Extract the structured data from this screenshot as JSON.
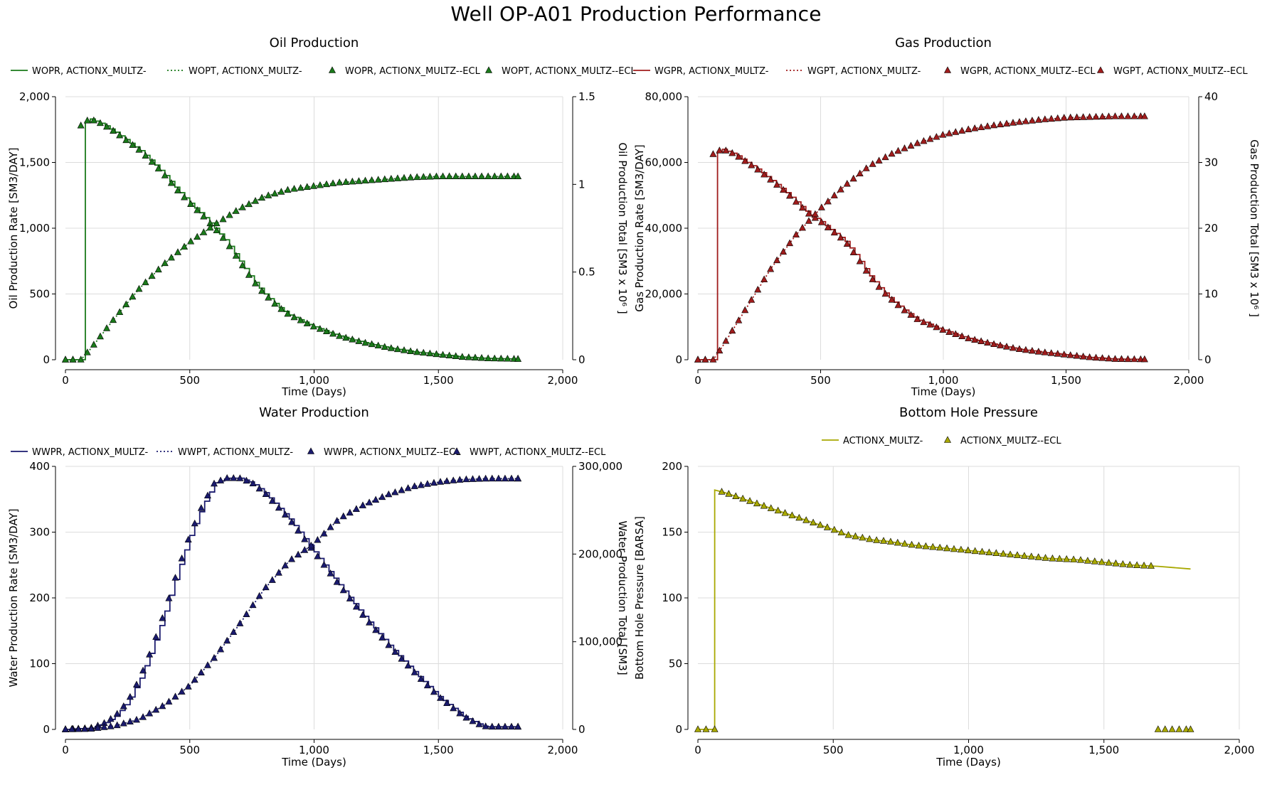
{
  "page": {
    "title": "Well OP-A01 Production Performance"
  },
  "chart_data": [
    {
      "id": "oil",
      "type": "line",
      "title": "Oil Production",
      "xlabel": "Time (Days)",
      "ylabel_left": "Oil Production Rate [SM3/DAY]",
      "ylabel_right": "Oil Production Total [SM3 x 10⁶ ]",
      "xlim": [
        0,
        2000
      ],
      "xticks": [
        0,
        500,
        1000,
        1500,
        2000
      ],
      "xtick_labels": [
        "0",
        "500",
        "1,000",
        "1,500",
        "2,000"
      ],
      "ylim_left": [
        0,
        2000
      ],
      "yticks_left": [
        0,
        500,
        1000,
        1500,
        2000
      ],
      "ytick_labels_left": [
        "0",
        "500",
        "1,000",
        "1,500",
        "2,000"
      ],
      "ylim_right": [
        0,
        1.5
      ],
      "yticks_right": [
        0,
        0.5,
        1,
        1.5
      ],
      "ytick_labels_right": [
        "0",
        "0.5",
        "1",
        "1.5"
      ],
      "grid": true,
      "legend_position": "top",
      "color": "#1a7a1a",
      "legend": [
        {
          "label": "WOPR, ACTIONX_MULTZ-",
          "style": "solid"
        },
        {
          "label": "WOPT, ACTIONX_MULTZ-",
          "style": "dotted"
        },
        {
          "label": "WOPR, ACTIONX_MULTZ--ECL",
          "style": "marker"
        },
        {
          "label": "WOPT, ACTIONX_MULTZ--ECL",
          "style": "marker"
        }
      ],
      "rate": {
        "name": "WOPR",
        "axis": "left",
        "step": true,
        "start": 62,
        "x": [
          0,
          62,
          70,
          100,
          150,
          200,
          250,
          300,
          350,
          400,
          450,
          500,
          550,
          600,
          650,
          700,
          750,
          800,
          850,
          900,
          1000,
          1100,
          1200,
          1300,
          1400,
          1500,
          1600,
          1700,
          1820
        ],
        "y": [
          0,
          1780,
          1800,
          1830,
          1790,
          1730,
          1660,
          1590,
          1500,
          1400,
          1290,
          1190,
          1100,
          1000,
          890,
          750,
          610,
          500,
          410,
          340,
          250,
          180,
          130,
          90,
          60,
          40,
          20,
          10,
          5
        ]
      },
      "total": {
        "name": "WOPT",
        "axis": "right",
        "x": [
          0,
          62,
          100,
          150,
          200,
          300,
          400,
          500,
          600,
          700,
          800,
          900,
          1000,
          1100,
          1200,
          1300,
          1400,
          1500,
          1600,
          1700,
          1820
        ],
        "y": [
          0,
          0,
          0.06,
          0.15,
          0.24,
          0.41,
          0.55,
          0.67,
          0.77,
          0.86,
          0.93,
          0.97,
          0.99,
          1.01,
          1.02,
          1.03,
          1.04,
          1.045,
          1.045,
          1.045,
          1.045
        ]
      },
      "ecl_markers": true
    },
    {
      "id": "gas",
      "type": "line",
      "title": "Gas Production",
      "xlabel": "Time (Days)",
      "ylabel_left": "Gas Production Rate [SM3/DAY]",
      "ylabel_right": "Gas Production Total [SM3 x 10⁶ ]",
      "xlim": [
        0,
        2000
      ],
      "xticks": [
        0,
        500,
        1000,
        1500,
        2000
      ],
      "xtick_labels": [
        "0",
        "500",
        "1,000",
        "1,500",
        "2,000"
      ],
      "ylim_left": [
        0,
        80000
      ],
      "yticks_left": [
        0,
        20000,
        40000,
        60000,
        80000
      ],
      "ytick_labels_left": [
        "0",
        "20,000",
        "40,000",
        "60,000",
        "80,000"
      ],
      "ylim_right": [
        0,
        40
      ],
      "yticks_right": [
        0,
        10,
        20,
        30,
        40
      ],
      "ytick_labels_right": [
        "0",
        "10",
        "20",
        "30",
        "40"
      ],
      "grid": true,
      "legend_position": "top",
      "color": "#a01c1c",
      "legend": [
        {
          "label": "WGPR, ACTIONX_MULTZ-",
          "style": "solid"
        },
        {
          "label": "WGPT, ACTIONX_MULTZ-",
          "style": "dotted"
        },
        {
          "label": "WGPR, ACTIONX_MULTZ--ECL",
          "style": "marker"
        },
        {
          "label": "WGPT, ACTIONX_MULTZ--ECL",
          "style": "marker"
        }
      ],
      "rate": {
        "name": "WGPR",
        "axis": "left",
        "step": true,
        "start": 62,
        "x": [
          0,
          62,
          70,
          100,
          150,
          200,
          250,
          300,
          350,
          400,
          450,
          500,
          550,
          600,
          650,
          700,
          750,
          800,
          850,
          900,
          1000,
          1100,
          1200,
          1300,
          1400,
          1500,
          1600,
          1700,
          1820
        ],
        "y": [
          0,
          62500,
          63000,
          64000,
          62500,
          60000,
          57500,
          54500,
          51500,
          48000,
          44500,
          42000,
          39000,
          36000,
          31000,
          25500,
          21000,
          17500,
          14500,
          12000,
          9000,
          6500,
          4800,
          3300,
          2300,
          1500,
          700,
          200,
          100
        ]
      },
      "total": {
        "name": "WGPT",
        "axis": "right",
        "x": [
          0,
          62,
          100,
          150,
          200,
          300,
          400,
          500,
          600,
          700,
          800,
          900,
          1000,
          1100,
          1200,
          1300,
          1400,
          1500,
          1600,
          1700,
          1820
        ],
        "y": [
          0,
          0,
          2,
          5,
          8,
          14,
          19,
          23,
          26.5,
          29.5,
          31.5,
          33,
          34.2,
          35,
          35.6,
          36.1,
          36.5,
          36.8,
          36.9,
          37,
          37
        ]
      },
      "ecl_markers": true
    },
    {
      "id": "water",
      "type": "line",
      "title": "Water Production",
      "xlabel": "Time (Days)",
      "ylabel_left": "Water Production Rate [SM3/DAY]",
      "ylabel_right": "Water Production Total [SM3]",
      "xlim": [
        0,
        2000
      ],
      "xticks": [
        0,
        500,
        1000,
        1500,
        2000
      ],
      "xtick_labels": [
        "0",
        "500",
        "1,000",
        "1,500",
        "2,000"
      ],
      "ylim_left": [
        0,
        400
      ],
      "yticks_left": [
        0,
        100,
        200,
        300,
        400
      ],
      "ytick_labels_left": [
        "0",
        "100",
        "200",
        "300",
        "400"
      ],
      "ylim_right": [
        0,
        300000
      ],
      "yticks_right": [
        0,
        100000,
        200000,
        300000
      ],
      "ytick_labels_right": [
        "0",
        "100,000",
        "200,000",
        "300,000"
      ],
      "grid": true,
      "legend_position": "top",
      "color": "#1a1a6e",
      "legend": [
        {
          "label": "WWPR, ACTIONX_MULTZ-",
          "style": "solid"
        },
        {
          "label": "WWPT, ACTIONX_MULTZ-",
          "style": "dotted"
        },
        {
          "label": "WWPR, ACTIONX_MULTZ--ECL",
          "style": "marker"
        },
        {
          "label": "WWPT, ACTIONX_MULTZ--ECL",
          "style": "marker"
        }
      ],
      "rate": {
        "name": "WWPR",
        "axis": "left",
        "step": true,
        "start": 0,
        "x": [
          0,
          100,
          150,
          200,
          250,
          300,
          350,
          400,
          450,
          500,
          550,
          600,
          650,
          700,
          750,
          800,
          900,
          1000,
          1100,
          1200,
          1300,
          1400,
          1500,
          1600,
          1650,
          1680,
          1700,
          1820
        ],
        "y": [
          0,
          2,
          8,
          20,
          42,
          78,
          125,
          180,
          240,
          295,
          340,
          375,
          382,
          382,
          375,
          360,
          320,
          270,
          220,
          172,
          128,
          88,
          50,
          20,
          10,
          5,
          4,
          4
        ]
      },
      "total": {
        "name": "WWPT",
        "axis": "right",
        "x": [
          0,
          100,
          200,
          300,
          400,
          500,
          600,
          700,
          800,
          900,
          1000,
          1100,
          1200,
          1300,
          1400,
          1500,
          1600,
          1700,
          1820
        ],
        "y": [
          0,
          500,
          4000,
          12000,
          28000,
          50000,
          82000,
          120000,
          160000,
          192000,
          212000,
          240000,
          256000,
          268000,
          277000,
          282000,
          285000,
          286000,
          286000
        ]
      },
      "ecl_markers": true
    },
    {
      "id": "bhp",
      "type": "line",
      "title": "Bottom Hole Pressure",
      "xlabel": "Time (Days)",
      "ylabel_left": "Bottom Hole Pressure [BARSA]",
      "xlim": [
        0,
        2000
      ],
      "xticks": [
        0,
        500,
        1000,
        1500,
        2000
      ],
      "xtick_labels": [
        "0",
        "500",
        "1,000",
        "1,500",
        "2,000"
      ],
      "ylim_left": [
        0,
        200
      ],
      "yticks_left": [
        0,
        50,
        100,
        150,
        200
      ],
      "ytick_labels_left": [
        "0",
        "50",
        "100",
        "150",
        "200"
      ],
      "grid": true,
      "legend_position": "top",
      "color": "#a8a800",
      "legend": [
        {
          "label": "ACTIONX_MULTZ-",
          "style": "solid"
        },
        {
          "label": "ACTIONX_MULTZ--ECL",
          "style": "marker"
        }
      ],
      "rate": {
        "name": "WBHP",
        "axis": "left",
        "step": false,
        "start": 62,
        "x": [
          0,
          62,
          62.1,
          100,
          200,
          300,
          400,
          500,
          550,
          600,
          650,
          700,
          800,
          900,
          1000,
          1100,
          1200,
          1300,
          1400,
          1500,
          1600,
          1700,
          1820
        ],
        "y": [
          0,
          0,
          182,
          180,
          173,
          166,
          159,
          152,
          148,
          146,
          144,
          143,
          140,
          138,
          136,
          134,
          132,
          130,
          129,
          127,
          125,
          124,
          122
        ]
      },
      "ecl_markers": true,
      "ecl_zero_after": 1680
    }
  ]
}
